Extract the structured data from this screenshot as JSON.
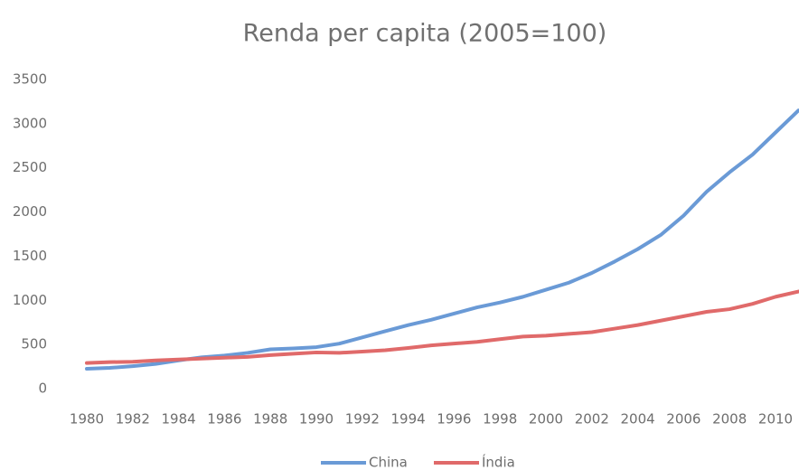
{
  "chart_data": {
    "type": "line",
    "title": "Renda per capita (2005=100)",
    "categories": [
      "1980",
      null,
      "1982",
      null,
      "1984",
      null,
      "1986",
      null,
      "1988",
      null,
      "1990",
      null,
      "1992",
      null,
      "1994",
      null,
      "1996",
      null,
      "1998",
      null,
      "2000",
      null,
      "2002",
      null,
      "2004",
      null,
      "2006",
      null,
      "2008",
      null,
      "2010",
      null
    ],
    "series": [
      {
        "name": "China",
        "color": "#6a9ad6",
        "values": [
          225,
          235,
          255,
          280,
          320,
          355,
          375,
          405,
          445,
          455,
          470,
          510,
          580,
          650,
          720,
          780,
          850,
          920,
          975,
          1040,
          1120,
          1200,
          1310,
          1440,
          1580,
          1740,
          1960,
          2230,
          2450,
          2650,
          2900,
          3150
        ]
      },
      {
        "name": "Índia",
        "color": "#e06a6a",
        "values": [
          290,
          300,
          305,
          320,
          330,
          340,
          350,
          360,
          380,
          395,
          410,
          405,
          420,
          435,
          460,
          490,
          510,
          530,
          560,
          590,
          600,
          620,
          640,
          680,
          720,
          770,
          820,
          870,
          900,
          960,
          1040,
          1100
        ]
      }
    ],
    "ylim": [
      0,
      3500
    ],
    "yticks": [
      0,
      500,
      1000,
      1500,
      2000,
      2500,
      3000,
      3500
    ],
    "grid": false,
    "legend": "bottom"
  }
}
